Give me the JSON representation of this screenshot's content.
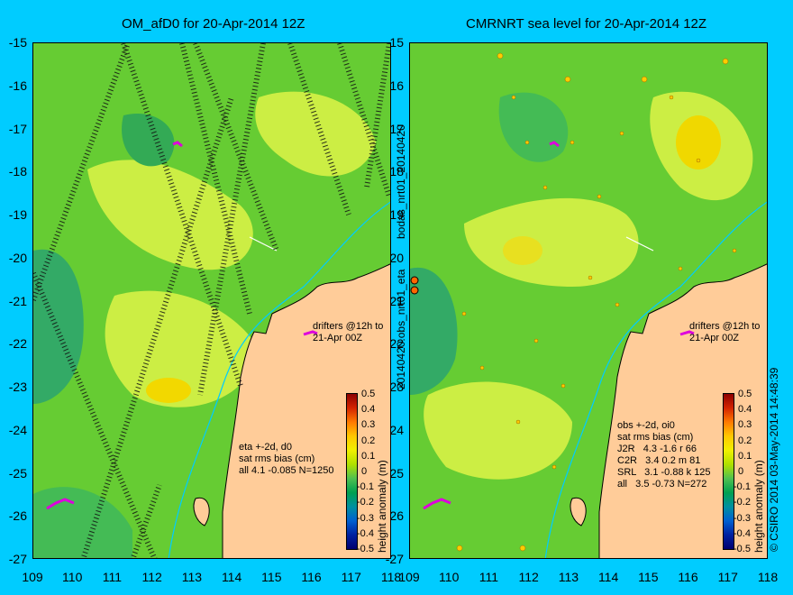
{
  "left_panel": {
    "title": "OM_afD0 for 20-Apr-2014 12Z",
    "side_label": "bodas_nrt01_20140420",
    "stats": "eta +-2d, d0\nsat rms bias (cm)\nall 4.1 -0.085 N=1250",
    "drifters": "drifters @12h to\n21-Apr 00Z"
  },
  "right_panel": {
    "title": "CMRNRT sea level  for 20-Apr-2014 12Z",
    "side_label": "20140420.obs_nrt01_eta",
    "stats": "obs +-2d, oi0\nsat rms bias (cm)\nJ2R   4.3 -1.6 r 66\nC2R   3.4 0.2 m 81\nSRL   3.1 -0.88 k 125\nall   3.5 -0.73 N=272",
    "drifters": "drifters @12h to\n21-Apr 00Z",
    "credit": "© CSIRO 2014  03-May-2014 14:48:39"
  },
  "axes": {
    "y_ticks": [
      "-15",
      "-16",
      "-17",
      "-18",
      "-19",
      "-20",
      "-21",
      "-22",
      "-23",
      "-24",
      "-25",
      "-26",
      "-27"
    ],
    "x_ticks": [
      "109",
      "110",
      "111",
      "112",
      "113",
      "114",
      "115",
      "116",
      "117",
      "118"
    ]
  },
  "colorbar": {
    "label": "height anomaly (m)",
    "ticks": [
      "0.5",
      "0.4",
      "0.3",
      "0.2",
      "0.1",
      "0",
      "-0.1",
      "-0.2",
      "-0.3",
      "-0.4",
      "-0.5"
    ]
  },
  "colors": {
    "background": "#00ccff",
    "land": "#ffcc99",
    "sea_base": "#66cc33"
  }
}
